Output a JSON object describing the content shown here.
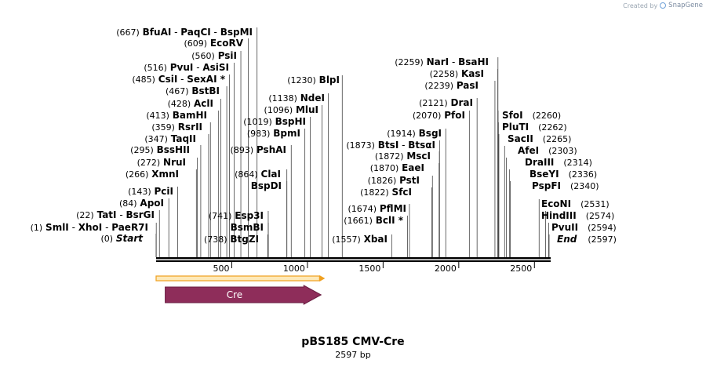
{
  "credit": {
    "prefix": "Created by",
    "brand": "SnapGene",
    "icon": "snapgene-logo-icon"
  },
  "plasmid": {
    "name": "pBS185 CMV-Cre",
    "length_label": "2597 bp",
    "length": 2597
  },
  "colors": {
    "feature_cre": "#8e2d5a",
    "primer_fill": "#f0a020",
    "line": "#000000"
  },
  "axis": {
    "ticks": [
      500,
      1000,
      1500,
      2000,
      2500
    ]
  },
  "features": [
    {
      "name": "Cre",
      "start": 60,
      "end": 1090,
      "direction": "forward"
    }
  ],
  "primers": [
    {
      "start": 0,
      "end": 1080,
      "direction": "forward"
    }
  ],
  "sites": [
    {
      "pos": "(0)",
      "parts": [
        {
          "t": "Start",
          "s": "italic"
        }
      ],
      "bp": 0
    },
    {
      "pos": "(1)",
      "parts": [
        {
          "t": "SmlI"
        },
        {
          "t": " - "
        },
        {
          "t": "XhoI"
        },
        {
          "t": " - "
        },
        {
          "t": "PaeR7I"
        }
      ],
      "bp": 1
    },
    {
      "pos": "(22)",
      "parts": [
        {
          "t": "TatI"
        },
        {
          "t": " - "
        },
        {
          "t": "BsrGI"
        }
      ],
      "bp": 22
    },
    {
      "pos": "(84)",
      "parts": [
        {
          "t": "ApoI"
        }
      ],
      "bp": 84
    },
    {
      "pos": "(143)",
      "parts": [
        {
          "t": "PciI"
        }
      ],
      "bp": 143
    },
    {
      "pos": "(266)",
      "parts": [
        {
          "t": "XmnI"
        }
      ],
      "bp": 266
    },
    {
      "pos": "(272)",
      "parts": [
        {
          "t": "NruI"
        }
      ],
      "bp": 272
    },
    {
      "pos": "(295)",
      "parts": [
        {
          "t": "BssHII"
        }
      ],
      "bp": 295
    },
    {
      "pos": "(347)",
      "parts": [
        {
          "t": "TaqII"
        }
      ],
      "bp": 347
    },
    {
      "pos": "(359)",
      "parts": [
        {
          "t": "RsrII"
        }
      ],
      "bp": 359
    },
    {
      "pos": "(413)",
      "parts": [
        {
          "t": "BamHI"
        }
      ],
      "bp": 413
    },
    {
      "pos": "(428)",
      "parts": [
        {
          "t": "AclI"
        }
      ],
      "bp": 428
    },
    {
      "pos": "(467)",
      "parts": [
        {
          "t": "BstBI"
        }
      ],
      "bp": 467
    },
    {
      "pos": "(485)",
      "parts": [
        {
          "t": "CsiI"
        },
        {
          "t": " - "
        },
        {
          "t": "SexAI *"
        }
      ],
      "bp": 485
    },
    {
      "pos": "(516)",
      "parts": [
        {
          "t": "PvuI"
        },
        {
          "t": " - "
        },
        {
          "t": "AsiSI"
        }
      ],
      "bp": 516
    },
    {
      "pos": "(560)",
      "parts": [
        {
          "t": "PsiI"
        }
      ],
      "bp": 560
    },
    {
      "pos": "(609)",
      "parts": [
        {
          "t": "EcoRV"
        }
      ],
      "bp": 609
    },
    {
      "pos": "(667)",
      "parts": [
        {
          "t": "BfuAI"
        },
        {
          "t": " - "
        },
        {
          "t": "PaqCI"
        },
        {
          "t": " - "
        },
        {
          "t": "BspMI"
        }
      ],
      "bp": 667
    },
    {
      "pos": "(738)",
      "parts": [
        {
          "t": "BtgZI"
        }
      ],
      "bp": 738
    },
    {
      "pos": "(741)",
      "parts": [
        {
          "t": "Esp3I"
        }
      ],
      "bp": 741
    },
    {
      "pos": "",
      "parts": [
        {
          "t": "BsmBI"
        }
      ],
      "bp": 741
    },
    {
      "pos": "",
      "parts": [
        {
          "t": "BspDI"
        }
      ],
      "bp": 864
    },
    {
      "pos": "(864)",
      "parts": [
        {
          "t": "ClaI"
        }
      ],
      "bp": 864
    },
    {
      "pos": "(893)",
      "parts": [
        {
          "t": "PshAI"
        }
      ],
      "bp": 893
    },
    {
      "pos": "(983)",
      "parts": [
        {
          "t": "BpmI"
        }
      ],
      "bp": 983
    },
    {
      "pos": "(1019)",
      "parts": [
        {
          "t": "BspHI"
        }
      ],
      "bp": 1019
    },
    {
      "pos": "(1096)",
      "parts": [
        {
          "t": "MluI"
        }
      ],
      "bp": 1096
    },
    {
      "pos": "(1138)",
      "parts": [
        {
          "t": "NdeI"
        }
      ],
      "bp": 1138
    },
    {
      "pos": "(1230)",
      "parts": [
        {
          "t": "BlpI"
        }
      ],
      "bp": 1230
    },
    {
      "pos": "(1557)",
      "parts": [
        {
          "t": "XbaI"
        }
      ],
      "bp": 1557
    },
    {
      "pos": "(1661)",
      "parts": [
        {
          "t": "BclI *"
        }
      ],
      "bp": 1661
    },
    {
      "pos": "(1674)",
      "parts": [
        {
          "t": "PflMI"
        }
      ],
      "bp": 1674
    },
    {
      "pos": "(1822)",
      "parts": [
        {
          "t": "SfcI"
        }
      ],
      "bp": 1822
    },
    {
      "pos": "(1826)",
      "parts": [
        {
          "t": "PstI"
        }
      ],
      "bp": 1826
    },
    {
      "pos": "(1870)",
      "parts": [
        {
          "t": "EaeI"
        }
      ],
      "bp": 1870
    },
    {
      "pos": "(1872)",
      "parts": [
        {
          "t": "MscI"
        }
      ],
      "bp": 1872
    },
    {
      "pos": "(1873)",
      "parts": [
        {
          "t": "BtsI"
        },
        {
          "t": " - "
        },
        {
          "t": "BtsαI"
        }
      ],
      "bp": 1873
    },
    {
      "pos": "(1914)",
      "parts": [
        {
          "t": "BsgI"
        }
      ],
      "bp": 1914
    },
    {
      "pos": "(2070)",
      "parts": [
        {
          "t": "PfoI"
        }
      ],
      "bp": 2070
    },
    {
      "pos": "(2121)",
      "parts": [
        {
          "t": "DraI"
        }
      ],
      "bp": 2121
    },
    {
      "pos": "(2239)",
      "parts": [
        {
          "t": "PasI"
        }
      ],
      "bp": 2239
    },
    {
      "pos": "(2258)",
      "parts": [
        {
          "t": "KasI"
        }
      ],
      "bp": 2258
    },
    {
      "pos": "(2259)",
      "parts": [
        {
          "t": "NarI"
        },
        {
          "t": " - "
        },
        {
          "t": "BsaHI"
        }
      ],
      "bp": 2259
    },
    {
      "pos": "(2260)",
      "parts": [
        {
          "t": "SfoI"
        }
      ],
      "bp": 2260
    },
    {
      "pos": "(2262)",
      "parts": [
        {
          "t": "PluTI"
        }
      ],
      "bp": 2262
    },
    {
      "pos": "(2265)",
      "parts": [
        {
          "t": "SacII"
        }
      ],
      "bp": 2265
    },
    {
      "pos": "(2303)",
      "parts": [
        {
          "t": "AfeI"
        }
      ],
      "bp": 2303
    },
    {
      "pos": "(2314)",
      "parts": [
        {
          "t": "DraIII"
        }
      ],
      "bp": 2314
    },
    {
      "pos": "(2336)",
      "parts": [
        {
          "t": "BseYI"
        }
      ],
      "bp": 2336
    },
    {
      "pos": "(2340)",
      "parts": [
        {
          "t": "PspFI"
        }
      ],
      "bp": 2340
    },
    {
      "pos": "(2531)",
      "parts": [
        {
          "t": "EcoNI"
        }
      ],
      "bp": 2531
    },
    {
      "pos": "(2574)",
      "parts": [
        {
          "t": "HindIII"
        }
      ],
      "bp": 2574
    },
    {
      "pos": "(2594)",
      "parts": [
        {
          "t": "PvuII"
        }
      ],
      "bp": 2594
    },
    {
      "pos": "(2597)",
      "parts": [
        {
          "t": "End",
          "s": "italic"
        }
      ],
      "bp": 2597
    }
  ]
}
